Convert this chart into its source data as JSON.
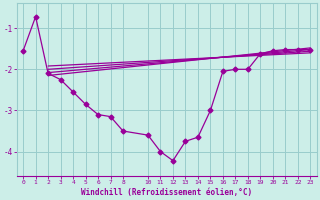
{
  "background_color": "#cceee8",
  "line_color": "#990099",
  "grid_color": "#99cccc",
  "xlabel": "Windchill (Refroidissement éolien,°C)",
  "xlabel_color": "#990099",
  "xlim": [
    -0.5,
    23.5
  ],
  "ylim": [
    -4.6,
    -0.4
  ],
  "yticks": [
    -4,
    -3,
    -2,
    -1
  ],
  "xticks": [
    0,
    1,
    2,
    3,
    4,
    5,
    6,
    7,
    8,
    10,
    11,
    12,
    13,
    14,
    15,
    16,
    17,
    18,
    19,
    20,
    21,
    22,
    23
  ],
  "main_x": [
    0,
    1,
    2,
    3,
    4,
    5,
    6,
    7,
    8,
    10,
    11,
    12,
    13,
    14,
    15,
    16,
    17,
    18,
    19,
    20,
    21,
    22,
    23
  ],
  "main_y": [
    -1.55,
    -0.72,
    -2.1,
    -2.25,
    -2.55,
    -2.85,
    -3.1,
    -3.15,
    -3.5,
    -3.6,
    -4.0,
    -4.22,
    -3.75,
    -3.65,
    -3.0,
    -2.05,
    -2.0,
    -2.0,
    -1.62,
    -1.55,
    -1.52,
    -1.52,
    -1.52
  ],
  "flat_lines": [
    {
      "x": [
        2,
        23
      ],
      "y": [
        -2.15,
        -1.48
      ]
    },
    {
      "x": [
        2,
        23
      ],
      "y": [
        -2.08,
        -1.52
      ]
    },
    {
      "x": [
        2,
        23
      ],
      "y": [
        -2.0,
        -1.56
      ]
    },
    {
      "x": [
        2,
        23
      ],
      "y": [
        -1.92,
        -1.6
      ]
    }
  ]
}
